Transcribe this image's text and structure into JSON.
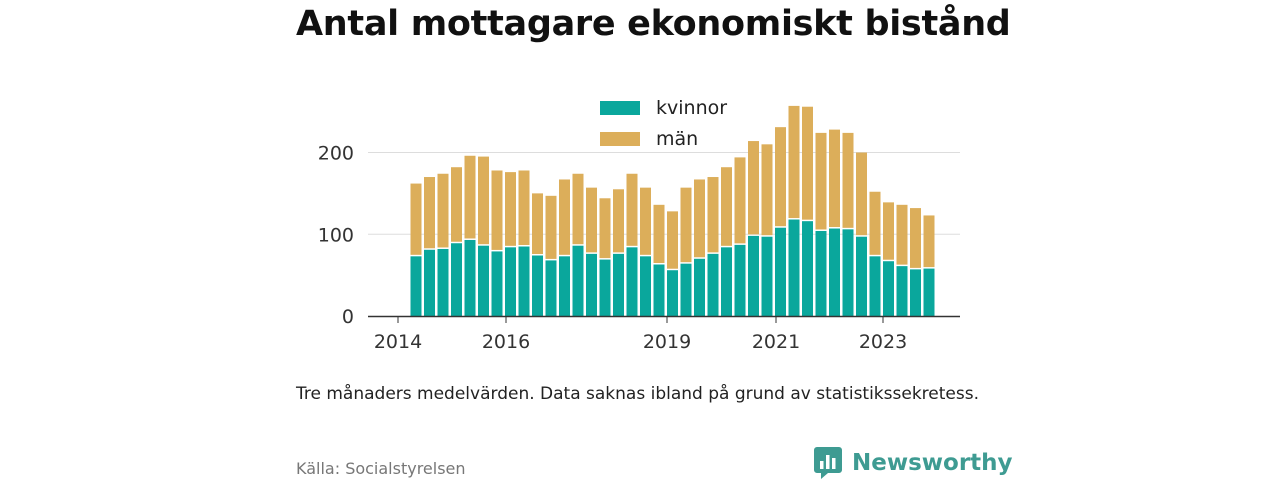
{
  "title": "Antal mottagare ekonomiskt bistånd",
  "note": "Tre månaders medelvärden. Data saknas ibland på grund av statistikssekretess.",
  "source": "Källa: Socialstyrelsen",
  "brand": {
    "name": "Newsworthy",
    "icon": "newsworthy-logo-icon",
    "color": "#3e9b92"
  },
  "colors": {
    "kvinnor": "#0aa79c",
    "man": "#dcae5a",
    "grid": "#dddddd",
    "axis": "#333333"
  },
  "chart_data": {
    "type": "bar",
    "stacked": true,
    "x_ticks": [
      "2014",
      "2016",
      "2019",
      "2021",
      "2023"
    ],
    "y_ticks": [
      0,
      100,
      200
    ],
    "ylim": [
      0,
      270
    ],
    "grid": true,
    "legend_position": "top-center",
    "categories": [
      "2014-07",
      "2014-10",
      "2015-01",
      "2015-04",
      "2015-07",
      "2015-10",
      "2016-01",
      "2016-04",
      "2016-07",
      "2016-10",
      "2017-01",
      "2017-04",
      "2017-07",
      "2017-10",
      "2018-01",
      "2018-04",
      "2018-07",
      "2018-10",
      "2019-01",
      "2019-04",
      "2019-07",
      "2019-10",
      "2020-01",
      "2020-04",
      "2020-07",
      "2020-10",
      "2021-01",
      "2021-04",
      "2021-07",
      "2021-10",
      "2022-01",
      "2022-04",
      "2022-07",
      "2022-10",
      "2023-01",
      "2023-04",
      "2023-07",
      "2023-10",
      "2024-01"
    ],
    "series": [
      {
        "name": "kvinnor",
        "values": [
          73,
          81,
          82,
          89,
          93,
          86,
          79,
          84,
          85,
          74,
          68,
          73,
          86,
          76,
          69,
          76,
          84,
          73,
          63,
          56,
          64,
          70,
          76,
          84,
          87,
          98,
          97,
          108,
          118,
          116,
          104,
          107,
          106,
          97,
          73,
          67,
          61,
          57,
          58
        ]
      },
      {
        "name": "män",
        "values": [
          89,
          89,
          92,
          93,
          103,
          109,
          99,
          92,
          93,
          76,
          79,
          94,
          88,
          81,
          75,
          79,
          90,
          84,
          73,
          72,
          93,
          97,
          94,
          98,
          107,
          116,
          113,
          123,
          139,
          140,
          120,
          121,
          118,
          103,
          79,
          72,
          75,
          75,
          65
        ]
      }
    ]
  }
}
